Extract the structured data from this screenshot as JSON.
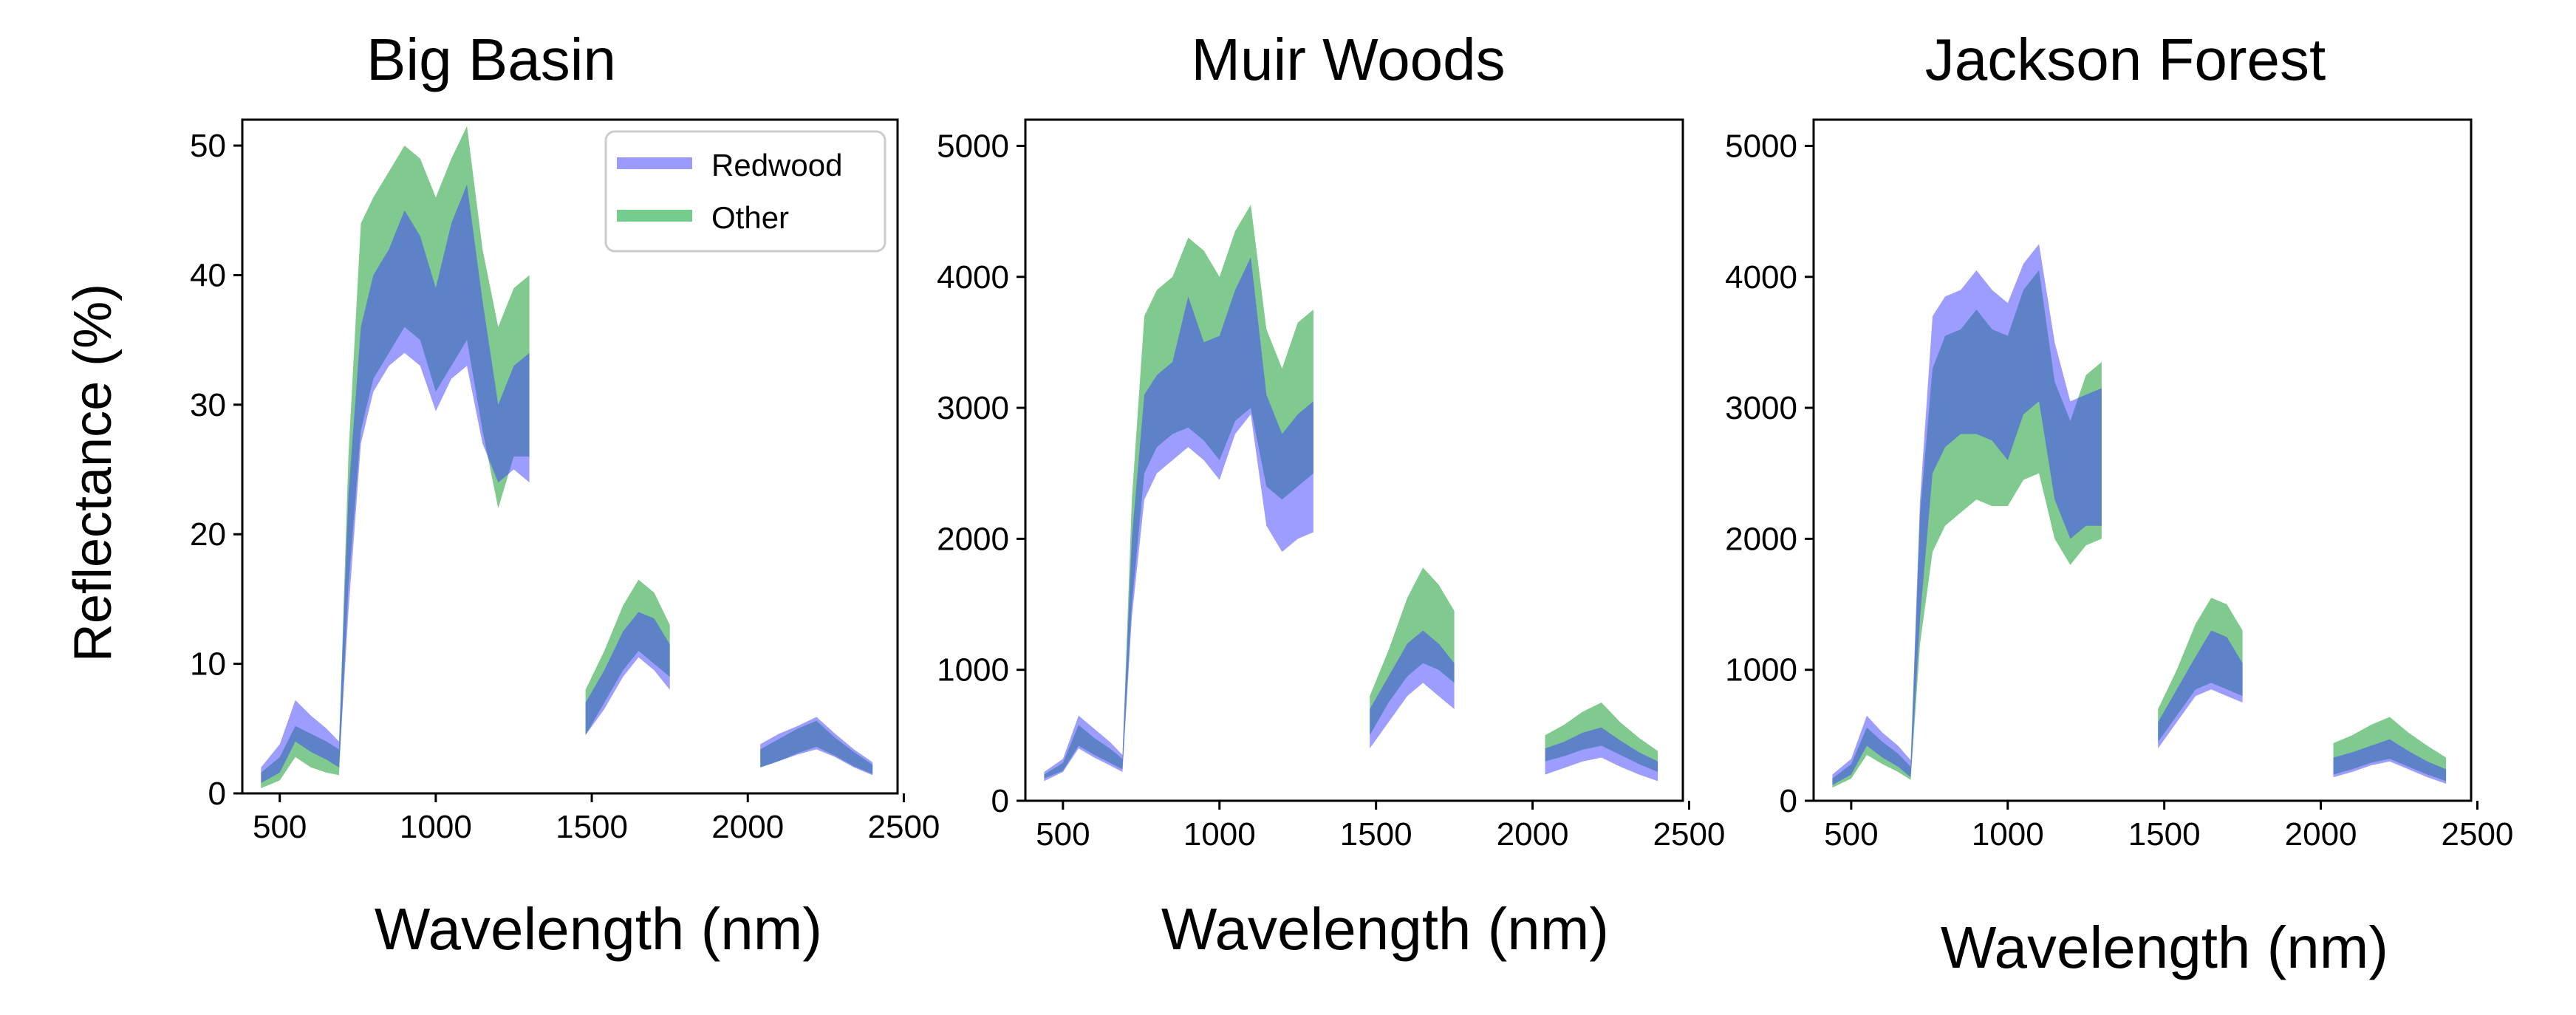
{
  "figure": {
    "ylabel": "Reflectance (%)",
    "colors": {
      "redwood": "#3b3bff",
      "other": "#2ca545",
      "overlap": "#4472c4"
    }
  },
  "legend": {
    "redwood": "Redwood",
    "other": "Other"
  },
  "chart_data": [
    {
      "type": "area",
      "title": "Big Basin",
      "xlabel": "Wavelength (nm)",
      "xlim": [
        380,
        2480
      ],
      "ylim": [
        0,
        52
      ],
      "xticks": [
        500,
        1000,
        1500,
        2000,
        2500
      ],
      "yticks": [
        0,
        10,
        20,
        30,
        40,
        50
      ],
      "segments": [
        {
          "x": [
            440,
            500,
            550,
            600,
            650,
            690,
            720,
            760,
            800,
            850,
            900,
            950,
            1000,
            1050,
            1100,
            1150,
            1200,
            1250,
            1300
          ],
          "redwood_lower": [
            0.8,
            1.6,
            4.0,
            3.2,
            2.6,
            2.0,
            14,
            27,
            31,
            33,
            34,
            33,
            29.5,
            32,
            33,
            27,
            24,
            25,
            24
          ],
          "redwood_upper": [
            2.0,
            3.8,
            7.2,
            6.0,
            5.0,
            4.0,
            23,
            36,
            40,
            42,
            45,
            43,
            39,
            44,
            47,
            38,
            30,
            33,
            34
          ],
          "other_lower": [
            0.4,
            1.0,
            2.8,
            2.0,
            1.6,
            1.4,
            16,
            28,
            32,
            34,
            36,
            35,
            31,
            33,
            35,
            28,
            22,
            26,
            26
          ],
          "other_upper": [
            1.6,
            2.8,
            5.2,
            4.6,
            4.0,
            3.4,
            26,
            44,
            46,
            48,
            50,
            49,
            46,
            49,
            51.5,
            42,
            36,
            39,
            40
          ]
        },
        {
          "x": [
            1480,
            1540,
            1600,
            1650,
            1700,
            1750
          ],
          "redwood_lower": [
            4.5,
            6.5,
            9.0,
            10.5,
            9.5,
            8.0
          ],
          "redwood_upper": [
            7.0,
            9.5,
            12.5,
            14.0,
            13.5,
            11.5
          ],
          "other_lower": [
            4.5,
            7.0,
            9.5,
            11.0,
            10.0,
            9.0
          ],
          "other_upper": [
            8.0,
            11.0,
            14.5,
            16.5,
            15.5,
            13.0
          ]
        },
        {
          "x": [
            2040,
            2100,
            2160,
            2220,
            2280,
            2340,
            2400
          ],
          "redwood_lower": [
            2.0,
            2.5,
            3.0,
            3.4,
            2.8,
            2.0,
            1.4
          ],
          "redwood_upper": [
            3.8,
            4.6,
            5.2,
            5.9,
            4.6,
            3.4,
            2.4
          ],
          "other_lower": [
            2.0,
            2.5,
            3.1,
            3.6,
            2.9,
            2.1,
            1.5
          ],
          "other_upper": [
            3.4,
            4.2,
            5.0,
            5.6,
            4.3,
            3.2,
            2.2
          ]
        }
      ]
    },
    {
      "type": "area",
      "title": "Muir Woods",
      "xlabel": "Wavelength (nm)",
      "xlim": [
        380,
        2480
      ],
      "ylim": [
        0,
        5200
      ],
      "xticks": [
        500,
        1000,
        1500,
        2000,
        2500
      ],
      "yticks": [
        0,
        1000,
        2000,
        3000,
        4000,
        5000
      ],
      "segments": [
        {
          "x": [
            440,
            500,
            550,
            600,
            650,
            690,
            720,
            760,
            800,
            850,
            900,
            950,
            1000,
            1050,
            1100,
            1150,
            1200,
            1250,
            1300
          ],
          "redwood_lower": [
            150,
            220,
            400,
            330,
            270,
            220,
            1400,
            2300,
            2500,
            2600,
            2700,
            2600,
            2450,
            2800,
            2950,
            2100,
            1900,
            2000,
            2050
          ],
          "redwood_upper": [
            220,
            320,
            650,
            550,
            450,
            350,
            2000,
            3100,
            3250,
            3350,
            3850,
            3500,
            3550,
            3900,
            4150,
            3100,
            2800,
            2950,
            3050
          ],
          "other_lower": [
            170,
            230,
            420,
            350,
            290,
            240,
            1500,
            2500,
            2700,
            2800,
            2850,
            2750,
            2600,
            2900,
            3000,
            2400,
            2300,
            2400,
            2500
          ],
          "other_upper": [
            200,
            290,
            580,
            480,
            400,
            320,
            2300,
            3700,
            3900,
            4000,
            4300,
            4200,
            4000,
            4350,
            4550,
            3600,
            3300,
            3650,
            3750
          ]
        },
        {
          "x": [
            1480,
            1540,
            1600,
            1650,
            1700,
            1750
          ],
          "redwood_lower": [
            400,
            600,
            800,
            900,
            800,
            700
          ],
          "redwood_upper": [
            700,
            950,
            1200,
            1300,
            1200,
            1050
          ],
          "other_lower": [
            500,
            750,
            950,
            1050,
            1000,
            900
          ],
          "other_upper": [
            800,
            1150,
            1550,
            1780,
            1650,
            1450
          ]
        },
        {
          "x": [
            2040,
            2100,
            2160,
            2220,
            2280,
            2340,
            2400
          ],
          "redwood_lower": [
            200,
            250,
            300,
            330,
            260,
            200,
            150
          ],
          "redwood_upper": [
            400,
            450,
            520,
            560,
            460,
            370,
            300
          ],
          "other_lower": [
            300,
            340,
            390,
            420,
            350,
            280,
            220
          ],
          "other_upper": [
            500,
            580,
            680,
            750,
            600,
            480,
            380
          ]
        }
      ]
    },
    {
      "type": "area",
      "title": "Jackson Forest",
      "xlabel": "Wavelength (nm)",
      "xlim": [
        380,
        2480
      ],
      "ylim": [
        0,
        5200
      ],
      "xticks": [
        500,
        1000,
        1500,
        2000,
        2500
      ],
      "yticks": [
        0,
        1000,
        2000,
        3000,
        4000,
        5000
      ],
      "segments": [
        {
          "x": [
            440,
            500,
            550,
            600,
            650,
            690,
            720,
            760,
            800,
            850,
            900,
            950,
            1000,
            1050,
            1100,
            1150,
            1200,
            1250,
            1300
          ],
          "redwood_lower": [
            120,
            200,
            420,
            330,
            260,
            180,
            1400,
            2500,
            2700,
            2800,
            2800,
            2750,
            2600,
            2950,
            3050,
            2300,
            2000,
            2100,
            2100
          ],
          "redwood_upper": [
            200,
            320,
            650,
            520,
            420,
            310,
            2300,
            3700,
            3850,
            3900,
            4050,
            3900,
            3800,
            4100,
            4250,
            3500,
            3050,
            3100,
            3150
          ],
          "other_lower": [
            100,
            170,
            350,
            280,
            220,
            160,
            1200,
            1900,
            2100,
            2200,
            2300,
            2250,
            2250,
            2450,
            2500,
            2000,
            1800,
            1950,
            2000
          ],
          "other_upper": [
            170,
            280,
            560,
            450,
            360,
            260,
            2200,
            3300,
            3550,
            3600,
            3750,
            3600,
            3550,
            3900,
            4050,
            3200,
            2900,
            3250,
            3350
          ]
        },
        {
          "x": [
            1480,
            1540,
            1600,
            1650,
            1700,
            1750
          ],
          "redwood_lower": [
            400,
            600,
            800,
            850,
            800,
            750
          ],
          "redwood_upper": [
            600,
            850,
            1100,
            1300,
            1250,
            1050
          ],
          "other_lower": [
            450,
            650,
            850,
            900,
            850,
            800
          ],
          "other_upper": [
            700,
            1000,
            1350,
            1550,
            1500,
            1300
          ]
        },
        {
          "x": [
            2040,
            2100,
            2160,
            2220,
            2280,
            2340,
            2400
          ],
          "redwood_lower": [
            180,
            220,
            270,
            300,
            240,
            180,
            130
          ],
          "redwood_upper": [
            330,
            370,
            420,
            470,
            380,
            300,
            240
          ],
          "other_lower": [
            200,
            240,
            290,
            320,
            260,
            200,
            150
          ],
          "other_upper": [
            440,
            500,
            580,
            640,
            520,
            420,
            330
          ]
        }
      ]
    }
  ]
}
